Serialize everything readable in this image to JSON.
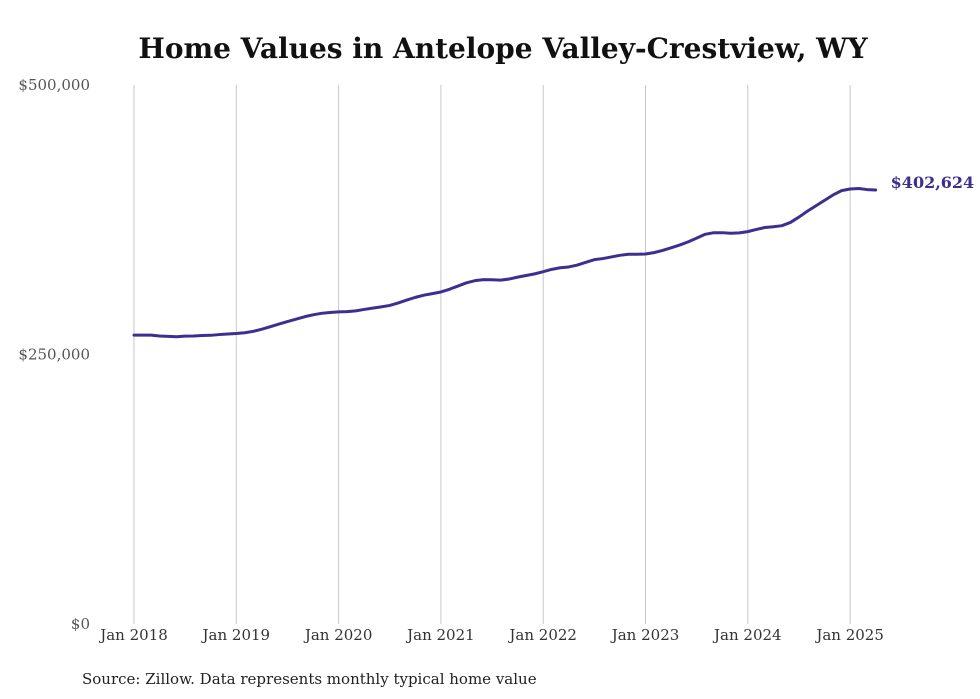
{
  "chart_data": {
    "type": "line",
    "title": "Home Values in Antelope Valley-Crestview, WY",
    "xlabel": "",
    "ylabel": "",
    "ylim": [
      0,
      500000
    ],
    "y_ticks": [
      0,
      250000,
      500000
    ],
    "y_tick_labels": [
      "$0",
      "$250,000",
      "$500,000"
    ],
    "x_ticks": [
      "Jan 2018",
      "Jan 2019",
      "Jan 2020",
      "Jan 2021",
      "Jan 2022",
      "Jan 2023",
      "Jan 2024",
      "Jan 2025"
    ],
    "grid": "vertical",
    "line_color": "#3d2f8f",
    "end_label": "$402,624",
    "series": [
      {
        "x": [
          "2018-01",
          "2018-02",
          "2018-03",
          "2018-04",
          "2018-05",
          "2018-06",
          "2018-07",
          "2018-08",
          "2018-09",
          "2018-10",
          "2018-11",
          "2018-12",
          "2019-01",
          "2019-02",
          "2019-03",
          "2019-04",
          "2019-05",
          "2019-06",
          "2019-07",
          "2019-08",
          "2019-09",
          "2019-10",
          "2019-11",
          "2019-12",
          "2020-01",
          "2020-02",
          "2020-03",
          "2020-04",
          "2020-05",
          "2020-06",
          "2020-07",
          "2020-08",
          "2020-09",
          "2020-10",
          "2020-11",
          "2020-12",
          "2021-01",
          "2021-02",
          "2021-03",
          "2021-04",
          "2021-05",
          "2021-06",
          "2021-07",
          "2021-08",
          "2021-09",
          "2021-10",
          "2021-11",
          "2021-12",
          "2022-01",
          "2022-02",
          "2022-03",
          "2022-04",
          "2022-05",
          "2022-06",
          "2022-07",
          "2022-08",
          "2022-09",
          "2022-10",
          "2022-11",
          "2022-12",
          "2023-01",
          "2023-02",
          "2023-03",
          "2023-04",
          "2023-05",
          "2023-06",
          "2023-07",
          "2023-08",
          "2023-09",
          "2023-10",
          "2023-11",
          "2023-12",
          "2024-01",
          "2024-02",
          "2024-03",
          "2024-04",
          "2024-05",
          "2024-06",
          "2024-07",
          "2024-08",
          "2024-09",
          "2024-10",
          "2024-11",
          "2024-12",
          "2025-01",
          "2025-02",
          "2025-03",
          "2025-04"
        ],
        "values": [
          268000,
          268000,
          268000,
          267200,
          266800,
          266500,
          267000,
          267200,
          267600,
          267800,
          268500,
          269000,
          269500,
          270200,
          271500,
          273500,
          275800,
          278200,
          280500,
          282800,
          285000,
          286800,
          288200,
          289000,
          289500,
          289800,
          290500,
          291800,
          293000,
          294200,
          295500,
          297800,
          300500,
          303000,
          305000,
          306500,
          308000,
          310500,
          313500,
          316500,
          318500,
          319500,
          319300,
          319000,
          320000,
          321800,
          323300,
          324800,
          326800,
          329000,
          330500,
          331200,
          333000,
          335500,
          338000,
          339000,
          340500,
          342000,
          343000,
          343000,
          343200,
          344500,
          346500,
          349000,
          351500,
          354500,
          358000,
          361500,
          363000,
          363000,
          362500,
          362800,
          364000,
          366000,
          367800,
          368500,
          369500,
          372500,
          377500,
          383000,
          388000,
          393000,
          398000,
          402000,
          403500,
          404000,
          403000,
          402624
        ]
      }
    ]
  },
  "footer": {
    "source": "Source: Zillow. Data represents monthly typical home value"
  }
}
